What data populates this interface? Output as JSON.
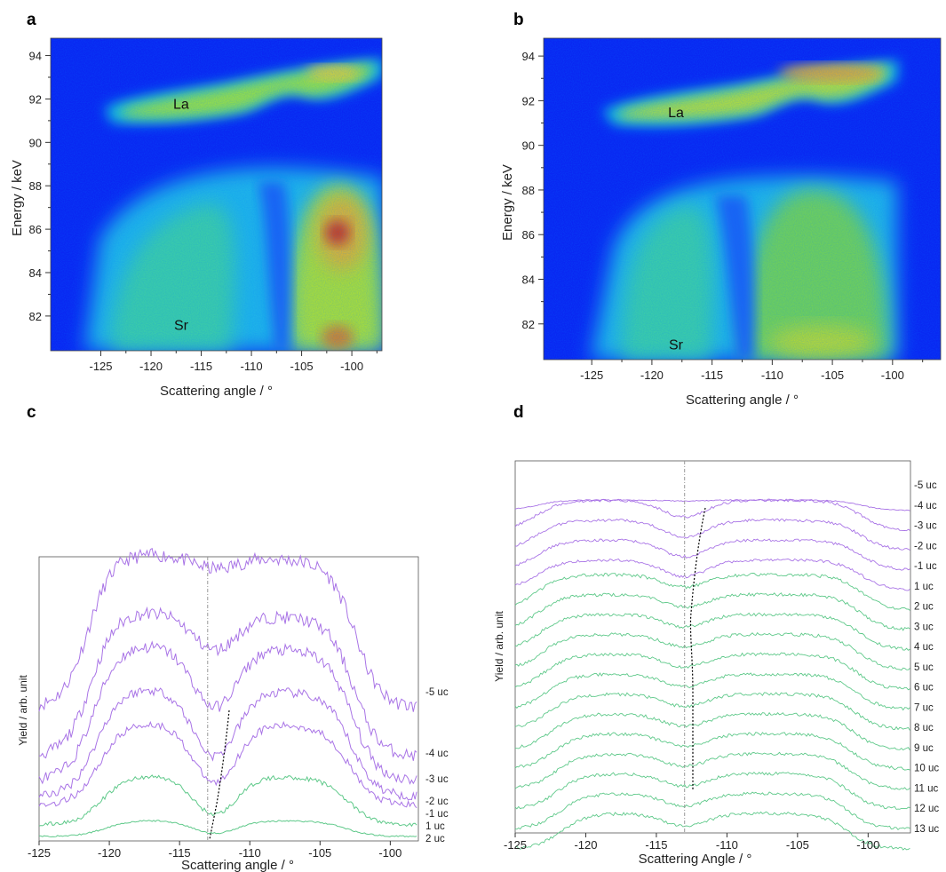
{
  "panels": {
    "a": "a",
    "b": "b",
    "c": "c",
    "d": "d"
  },
  "colors": {
    "map_background": "#0a1cf0",
    "purple_trace": "#a974e6",
    "green_trace": "#5fc98a",
    "ref_line": "#999999",
    "shift_line": "#000000"
  },
  "chart_data": [
    {
      "id": "a",
      "type": "heatmap",
      "xlabel": "Scattering angle / °",
      "ylabel": "Energy / keV",
      "xlim": [
        -130,
        -97
      ],
      "ylim": [
        80.4,
        94.8
      ],
      "xticks": [
        -125,
        -120,
        -115,
        -110,
        -105,
        -100
      ],
      "yticks": [
        82,
        84,
        86,
        88,
        90,
        92,
        94
      ],
      "annotations": [
        {
          "text": "La",
          "x": -117,
          "y": 91.8
        },
        {
          "text": "Sr",
          "x": -117,
          "y": 81.6
        }
      ],
      "features": {
        "la_peak_x": -107,
        "la_peak_y": 93,
        "sr_hot_x": -106,
        "sr_hot_y": 86.2,
        "dip_x": -112
      }
    },
    {
      "id": "b",
      "type": "heatmap",
      "xlabel": "Scattering angle / °",
      "ylabel": "Energy / keV",
      "xlim": [
        -129,
        -96
      ],
      "ylim": [
        80.4,
        94.8
      ],
      "xticks": [
        -125,
        -120,
        -115,
        -110,
        -105,
        -100
      ],
      "yticks": [
        82,
        84,
        86,
        88,
        90,
        92,
        94
      ],
      "annotations": [
        {
          "text": "La",
          "x": -118,
          "y": 91.5
        },
        {
          "text": "Sr",
          "x": -118,
          "y": 81.1
        }
      ],
      "features": {
        "la_peak_x": -106,
        "la_peak_y": 93,
        "sr_hot_x": -105,
        "sr_hot_y": 82,
        "dip_x": -113
      }
    },
    {
      "id": "c",
      "type": "line",
      "xlabel": "Scattering angle / °",
      "ylabel": "Yield / arb. unit",
      "xlim": [
        -125,
        -98
      ],
      "xticks": [
        -125,
        -120,
        -115,
        -110,
        -105,
        -100
      ],
      "reference_x": -113,
      "series": [
        {
          "name": "-5 uc",
          "color": "purple",
          "baseline": 0.0,
          "peak": 1.0,
          "dip": 0.05
        },
        {
          "name": "-4 uc",
          "color": "purple",
          "baseline": 0.0,
          "peak": 0.85,
          "dip": 0.25
        },
        {
          "name": "-3 uc",
          "color": "purple",
          "baseline": 0.0,
          "peak": 0.8,
          "dip": 0.45
        },
        {
          "name": "-2 uc",
          "color": "purple",
          "baseline": 0.0,
          "peak": 0.6,
          "dip": 0.7
        },
        {
          "name": "-1 uc",
          "color": "purple",
          "baseline": 0.0,
          "peak": 0.42,
          "dip": 0.75
        },
        {
          "name": "1 uc",
          "color": "green",
          "baseline": 0.0,
          "peak": 0.22,
          "dip": 0.8
        },
        {
          "name": "2 uc",
          "color": "green",
          "baseline": 0.0,
          "peak": 0.12,
          "dip": 0.8
        }
      ],
      "shift_curve": [
        [
          -111.5,
          -2
        ],
        [
          -112.1,
          -1
        ],
        [
          -112.4,
          1
        ],
        [
          -112.8,
          2
        ]
      ]
    },
    {
      "id": "d",
      "type": "line",
      "xlabel": "Scattering Angle / °",
      "ylabel": "Yield / arb. unit",
      "xlim": [
        -125,
        -97
      ],
      "xticks": [
        -125,
        -120,
        -115,
        -110,
        -105,
        -100
      ],
      "reference_x": -113,
      "series": [
        {
          "name": "-5 uc",
          "color": "purple"
        },
        {
          "name": "-4 uc",
          "color": "purple"
        },
        {
          "name": "-3 uc",
          "color": "purple"
        },
        {
          "name": "-2 uc",
          "color": "purple"
        },
        {
          "name": "-1 uc",
          "color": "purple"
        },
        {
          "name": "1 uc",
          "color": "green"
        },
        {
          "name": "2 uc",
          "color": "green"
        },
        {
          "name": "3 uc",
          "color": "green"
        },
        {
          "name": "4 uc",
          "color": "green"
        },
        {
          "name": "5 uc",
          "color": "green"
        },
        {
          "name": "6 uc",
          "color": "green"
        },
        {
          "name": "7 uc",
          "color": "green"
        },
        {
          "name": "8 uc",
          "color": "green"
        },
        {
          "name": "9 uc",
          "color": "green"
        },
        {
          "name": "10 uc",
          "color": "green"
        },
        {
          "name": "11 uc",
          "color": "green"
        },
        {
          "name": "12 uc",
          "color": "green"
        },
        {
          "name": "13 uc",
          "color": "green"
        }
      ]
    }
  ]
}
